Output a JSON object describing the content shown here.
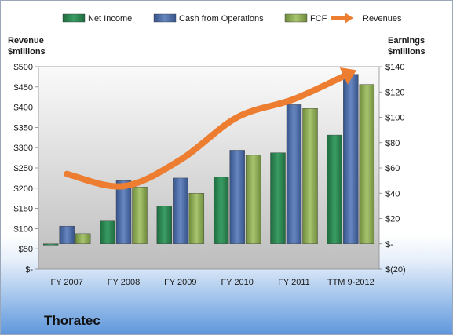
{
  "company": "Thoratec",
  "chart_data": {
    "type": "bar",
    "categories": [
      "FY 2007",
      "FY 2008",
      "FY 2009",
      "FY 2010",
      "FY 2011",
      "TTM 9-2012"
    ],
    "left_axis": {
      "title_line1": "Revenue",
      "title_line2": "$millions",
      "ylim": [
        0,
        500
      ],
      "ticks": [
        0,
        50,
        100,
        150,
        200,
        250,
        300,
        350,
        400,
        450,
        500
      ],
      "tick_labels": [
        "$-",
        "$50",
        "$100",
        "$150",
        "$200",
        "$250",
        "$300",
        "$350",
        "$400",
        "$450",
        "$500"
      ]
    },
    "right_axis": {
      "title_line1": "Earnings",
      "title_line2": "$millions",
      "ylim": [
        -20,
        140
      ],
      "ticks": [
        -20,
        0,
        20,
        40,
        60,
        80,
        100,
        120,
        140
      ],
      "tick_labels": [
        "$(20)",
        "$-",
        "$20",
        "$40",
        "$60",
        "$80",
        "$100",
        "$120",
        "$140"
      ]
    },
    "series": [
      {
        "name": "Net Income",
        "axis": "right",
        "kind": "bar",
        "color": "#2e8b57",
        "values": [
          -1,
          18,
          30,
          53,
          72,
          86
        ]
      },
      {
        "name": "Cash from Operations",
        "axis": "right",
        "kind": "bar",
        "color": "#4f6fa8",
        "values": [
          14,
          50,
          52,
          74,
          110,
          134
        ]
      },
      {
        "name": "FCF",
        "axis": "right",
        "kind": "bar",
        "color": "#8fae5a",
        "values": [
          8,
          45,
          40,
          70,
          107,
          126
        ]
      },
      {
        "name": "Revenues",
        "axis": "left",
        "kind": "line",
        "color": "#ed7d31",
        "values": [
          235,
          205,
          270,
          375,
          420,
          485
        ]
      }
    ],
    "legend_position": "top",
    "grid": false
  }
}
